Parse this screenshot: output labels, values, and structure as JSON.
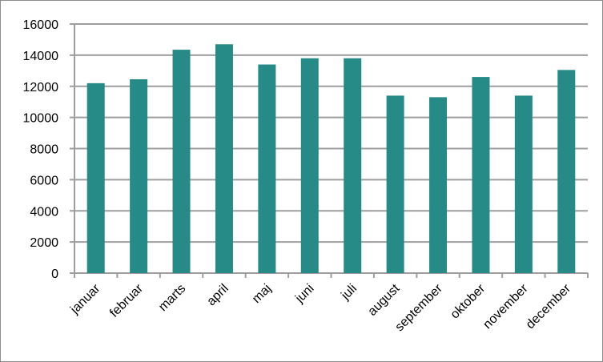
{
  "chart_data": {
    "type": "bar",
    "categories": [
      "januar",
      "februar",
      "marts",
      "april",
      "maj",
      "juni",
      "juli",
      "august",
      "september",
      "oktober",
      "november",
      "december"
    ],
    "values": [
      12200,
      12450,
      14350,
      14700,
      13400,
      13800,
      13800,
      11400,
      11300,
      12600,
      11400,
      13050
    ],
    "title": "",
    "xlabel": "",
    "ylabel": "",
    "ylim": [
      0,
      16000
    ],
    "yticks": [
      0,
      2000,
      4000,
      6000,
      8000,
      10000,
      12000,
      14000,
      16000
    ],
    "grid": true,
    "legend": "none",
    "bar_color": "#268b87",
    "grid_color": "#9e9e9e"
  }
}
